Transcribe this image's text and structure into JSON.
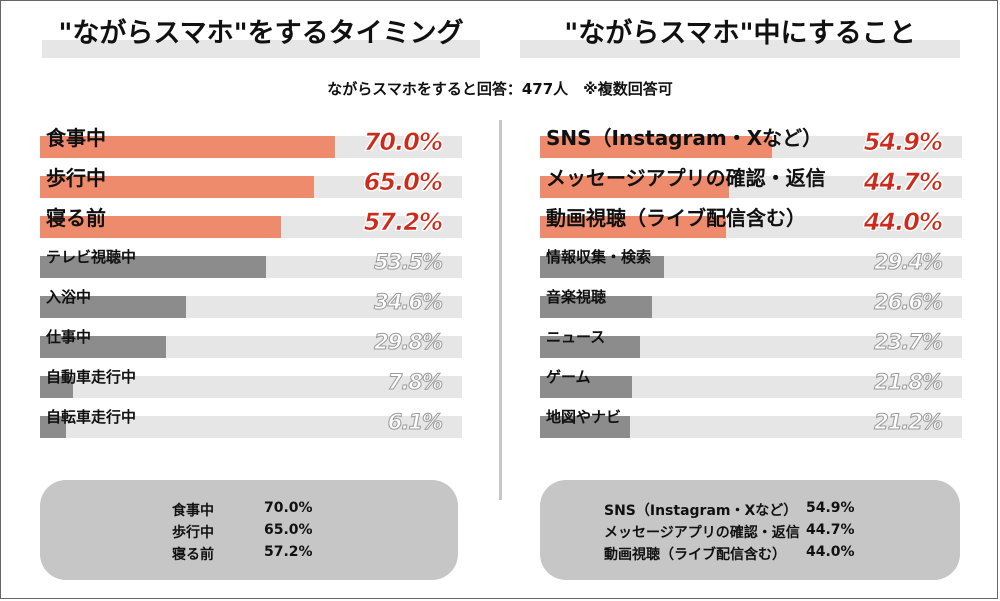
{
  "header": {
    "left_title": "\"ながらスマホ\"をするタイミング",
    "right_title": "\"ながらスマホ\"中にすること",
    "subtitle": "ながらスマホをすると回答：477人　※複数回答可"
  },
  "colors": {
    "highlight": "#ee8b6c",
    "normal": "#8c8c8c",
    "track": "#e6e6e6",
    "highlight_text": "#cc2a1a"
  },
  "chart_data": [
    {
      "type": "bar",
      "orientation": "horizontal",
      "xlim": [
        0,
        100
      ],
      "categories": [
        "食事中",
        "歩行中",
        "寝る前",
        "テレビ視聴中",
        "入浴中",
        "仕事中",
        "自動車走行中",
        "自転車走行中"
      ],
      "values": [
        70.0,
        65.0,
        57.2,
        53.5,
        34.6,
        29.8,
        7.8,
        6.1
      ],
      "labels": [
        "70.0%",
        "65.0%",
        "57.2%",
        "53.5%",
        "34.6%",
        "29.8%",
        "7.8%",
        "6.1%"
      ],
      "highlight_count": 3
    },
    {
      "type": "bar",
      "orientation": "horizontal",
      "xlim": [
        0,
        100
      ],
      "categories": [
        "SNS（Instagram・Xなど）",
        "メッセージアプリの確認・返信",
        "動画視聴（ライブ配信含む）",
        "情報収集・検索",
        "音楽視聴",
        "ニュース",
        "ゲーム",
        "地図やナビ"
      ],
      "values": [
        54.9,
        44.7,
        44.0,
        29.4,
        26.6,
        23.7,
        21.8,
        21.2
      ],
      "labels": [
        "54.9%",
        "44.7%",
        "44.0%",
        "29.4%",
        "26.6%",
        "23.7%",
        "21.8%",
        "21.2%"
      ],
      "highlight_count": 3
    }
  ],
  "summary_left": [
    {
      "name": "食事中",
      "value": "70.0%"
    },
    {
      "name": "歩行中",
      "value": "65.0%"
    },
    {
      "name": "寝る前",
      "value": "57.2%"
    }
  ],
  "summary_right": [
    {
      "name": "SNS（Instagram・Xなど）",
      "value": "54.9%"
    },
    {
      "name": "メッセージアプリの確認・返信",
      "value": "44.7%"
    },
    {
      "name": "動画視聴（ライブ配信含む）",
      "value": "44.0%"
    }
  ]
}
